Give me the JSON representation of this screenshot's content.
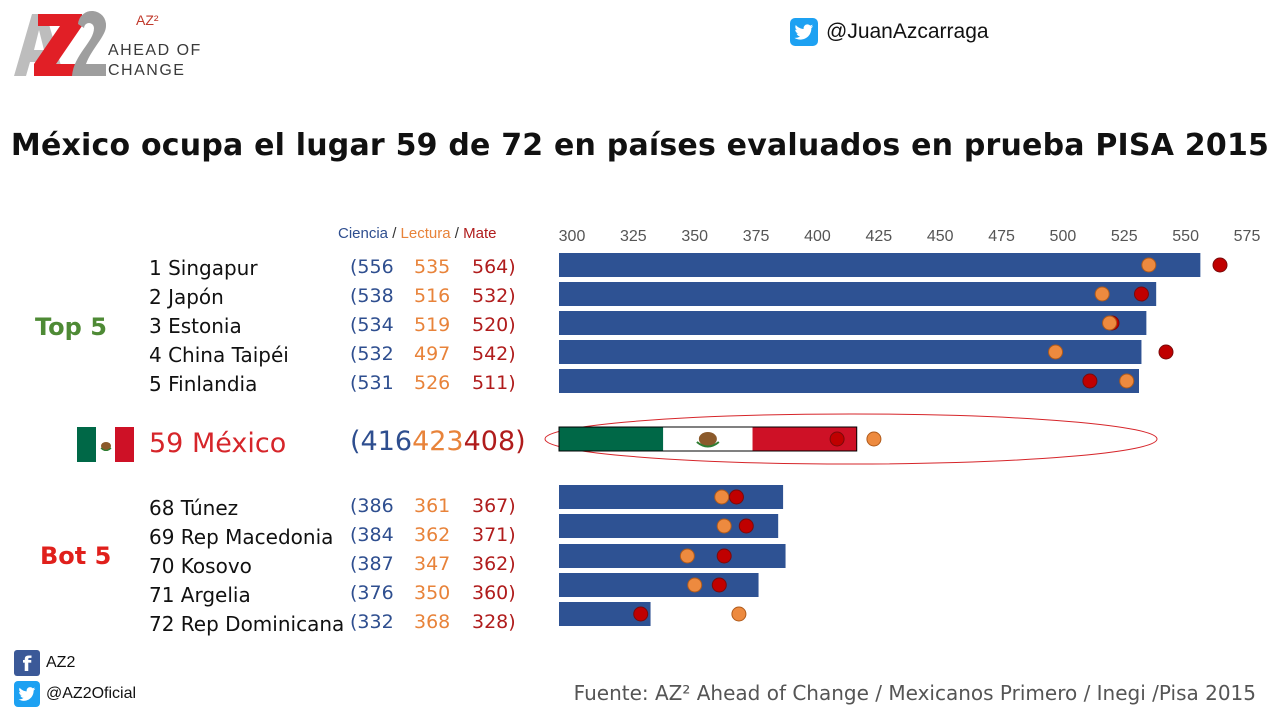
{
  "brand": {
    "logo_letters": "AZ2",
    "superscript": "AZ²",
    "line1": "AHEAD OF",
    "line2": "CHANGE"
  },
  "twitter_handle": "@JuanAzcarraga",
  "title": "México ocupa el lugar 59 de 72 en países evaluados en prueba PISA 2015",
  "column_headers": {
    "ciencia": "Ciencia",
    "lectura": "Lectura",
    "mate": "Mate",
    "sep": "/"
  },
  "group_labels": {
    "top": "Top 5",
    "bottom": "Bot 5"
  },
  "colors": {
    "bar": "#2e5293",
    "science": "#2e4e8f",
    "reading": "#e8833a",
    "math": "#b01c1c",
    "top_label": "#4e8a35",
    "bottom_label": "#e0201c",
    "mexico_text": "#d6252a",
    "flag_green": "#006847",
    "flag_white": "#ffffff",
    "flag_red": "#ce1126"
  },
  "rows": [
    {
      "name": "1 Singapur",
      "ciencia": "(556",
      "lectura": "535",
      "mate": "564)"
    },
    {
      "name": "2 Japón",
      "ciencia": "(538",
      "lectura": "516",
      "mate": "532)"
    },
    {
      "name": "3 Estonia",
      "ciencia": "(534",
      "lectura": "519",
      "mate": "520)"
    },
    {
      "name": "4 China Taipéi",
      "ciencia": "(532",
      "lectura": "497",
      "mate": "542)"
    },
    {
      "name": "5 Finlandia",
      "ciencia": "(531",
      "lectura": "526",
      "mate": "511)"
    },
    {
      "name": "59 México",
      "ciencia": "(416",
      "lectura": "423",
      "mate": "408)"
    },
    {
      "name": "68 Túnez",
      "ciencia": "(386",
      "lectura": "361",
      "mate": "367)"
    },
    {
      "name": "69 Rep Macedonia",
      "ciencia": "(384",
      "lectura": "362",
      "mate": "371)"
    },
    {
      "name": "70 Kosovo",
      "ciencia": "(387",
      "lectura": "347",
      "mate": "362)"
    },
    {
      "name": "71 Argelia",
      "ciencia": "(376",
      "lectura": "350",
      "mate": "360)"
    },
    {
      "name": "72 Rep Dominicana",
      "ciencia": "(332",
      "lectura": "368",
      "mate": "328)"
    }
  ],
  "chart_data": {
    "type": "bar",
    "orientation": "horizontal",
    "x_ticks": [
      "300",
      "325",
      "350",
      "375",
      "400",
      "425",
      "450",
      "475",
      "500",
      "525",
      "550",
      "575"
    ],
    "xlim": [
      300,
      575
    ],
    "categories": [
      "1 Singapur",
      "2 Japón",
      "3 Estonia",
      "4 China Taipéi",
      "5 Finlandia",
      "59 México",
      "68 Túnez",
      "69 Rep Macedonia",
      "70 Kosovo",
      "71 Argelia",
      "72 Rep Dominicana"
    ],
    "series": [
      {
        "name": "Ciencia",
        "mark": "bar",
        "values": [
          556,
          538,
          534,
          532,
          531,
          416,
          386,
          384,
          387,
          376,
          332
        ]
      },
      {
        "name": "Lectura",
        "mark": "dot",
        "values": [
          535,
          516,
          519,
          497,
          526,
          423,
          361,
          362,
          347,
          350,
          368
        ]
      },
      {
        "name": "Mate",
        "mark": "dot",
        "values": [
          564,
          532,
          520,
          542,
          511,
          408,
          367,
          371,
          362,
          360,
          328
        ]
      }
    ],
    "highlight": "59 México",
    "legend": "top"
  },
  "footer": {
    "facebook_label": "AZ2",
    "twitter_label": "@AZ2Oficial",
    "source": "Fuente: AZ² Ahead of Change / Mexicanos Primero / Inegi /Pisa 2015"
  }
}
